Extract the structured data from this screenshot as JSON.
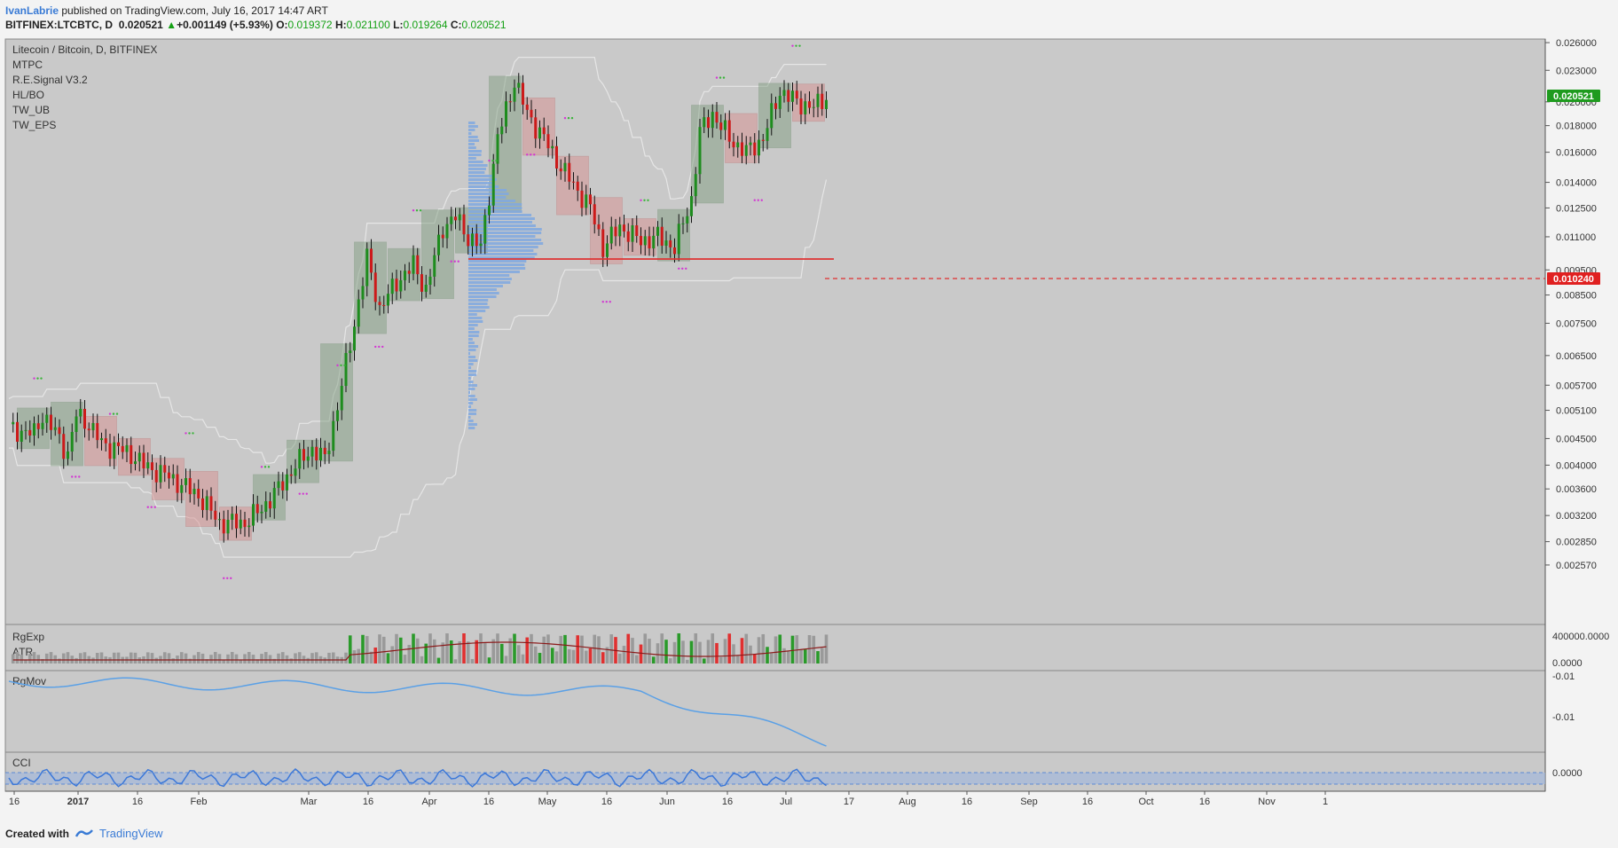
{
  "header": {
    "author": "IvanLabrie",
    "published_text": "published on TradingView.com, July 16, 2017 14:47 ART",
    "symbol": "BITFINEX:LTCBTC, D",
    "last": "0.020521",
    "change_arrow": "▲",
    "change": "+0.001149 (+5.93%)",
    "o_label": "O:",
    "o": "0.019372",
    "h_label": "H:",
    "h": "0.021100",
    "l_label": "L:",
    "l": "0.019264",
    "c_label": "C:",
    "c": "0.020521"
  },
  "legend": [
    "Litecoin / Bitcoin, D, BITFINEX",
    "MTPC",
    "R.E.Signal V3.2",
    "HL/BO",
    "TW_UB",
    "TW_EPS"
  ],
  "sub_labels": {
    "rgexp": "RgExp",
    "atr": "ATR",
    "rgmov": "RgMov",
    "cci": "CCI"
  },
  "footer": {
    "created_with": "Created with",
    "brand": "TradingView"
  },
  "colors": {
    "bull": "#1e8c1e",
    "bear": "#cc1a1a",
    "level_line": "#e03030",
    "price_badge": "#1f9b1f",
    "level_badge": "#e02020",
    "rgmov_line": "#5aa0e6",
    "cci_line": "#3c78d8"
  },
  "chart_data": {
    "type": "candlestick",
    "title": "Litecoin / Bitcoin, D, BITFINEX",
    "y_scale": "log",
    "y_ticks": [
      "0.026000",
      "0.023000",
      "0.020000",
      "0.018000",
      "0.016000",
      "0.014000",
      "0.012500",
      "0.011000",
      "0.009500",
      "0.008500",
      "0.007500",
      "0.006500",
      "0.005700",
      "0.005100",
      "0.004500",
      "0.004000",
      "0.003600",
      "0.003200",
      "0.002850",
      "0.002570"
    ],
    "x_ticks": [
      "16",
      "2017",
      "16",
      "Feb",
      "Mar",
      "16",
      "Apr",
      "16",
      "May",
      "16",
      "Jun",
      "16",
      "Jul",
      "17",
      "Aug",
      "16",
      "Sep",
      "16",
      "Oct",
      "16",
      "Nov",
      "1"
    ],
    "current_price": "0.020521",
    "level_price": "0.010240",
    "close_path": [
      [
        0,
        0.0047
      ],
      [
        6,
        0.0046
      ],
      [
        8,
        0.005
      ],
      [
        12,
        0.0045
      ],
      [
        14,
        0.0042
      ],
      [
        16,
        0.005
      ],
      [
        19,
        0.0048
      ],
      [
        22,
        0.0044
      ],
      [
        26,
        0.0043
      ],
      [
        29,
        0.0042
      ],
      [
        32,
        0.004
      ],
      [
        38,
        0.0038
      ],
      [
        45,
        0.0035
      ],
      [
        50,
        0.0031
      ],
      [
        56,
        0.0031
      ],
      [
        60,
        0.0033
      ],
      [
        64,
        0.0036
      ],
      [
        68,
        0.004
      ],
      [
        72,
        0.0043
      ],
      [
        75,
        0.0041
      ],
      [
        78,
        0.0052
      ],
      [
        82,
        0.0075
      ],
      [
        85,
        0.01
      ],
      [
        88,
        0.008
      ],
      [
        92,
        0.009
      ],
      [
        96,
        0.0097
      ],
      [
        99,
        0.0087
      ],
      [
        103,
        0.0115
      ],
      [
        106,
        0.012
      ],
      [
        109,
        0.011
      ],
      [
        112,
        0.0105
      ],
      [
        116,
        0.017
      ],
      [
        120,
        0.022
      ],
      [
        123,
        0.019
      ],
      [
        127,
        0.017
      ],
      [
        131,
        0.015
      ],
      [
        135,
        0.0135
      ],
      [
        138,
        0.0125
      ],
      [
        141,
        0.0105
      ],
      [
        145,
        0.0115
      ],
      [
        150,
        0.0108
      ],
      [
        154,
        0.011
      ],
      [
        158,
        0.0105
      ],
      [
        162,
        0.013
      ],
      [
        164,
        0.0175
      ],
      [
        167,
        0.019
      ],
      [
        171,
        0.017
      ],
      [
        175,
        0.016
      ],
      [
        179,
        0.017
      ],
      [
        183,
        0.021
      ],
      [
        187,
        0.02
      ],
      [
        191,
        0.0195
      ],
      [
        194,
        0.0205
      ]
    ],
    "volume_profile_poc": "0.011000",
    "sub_panels": [
      {
        "name": "RgExp",
        "ticks": [
          "400000.0000",
          "0.0000"
        ]
      },
      {
        "name": "ATR"
      },
      {
        "name": "RgMov",
        "ticks": [
          "-0.01",
          "-0.01"
        ]
      },
      {
        "name": "CCI",
        "ticks": [
          "0.0000"
        ]
      }
    ]
  }
}
